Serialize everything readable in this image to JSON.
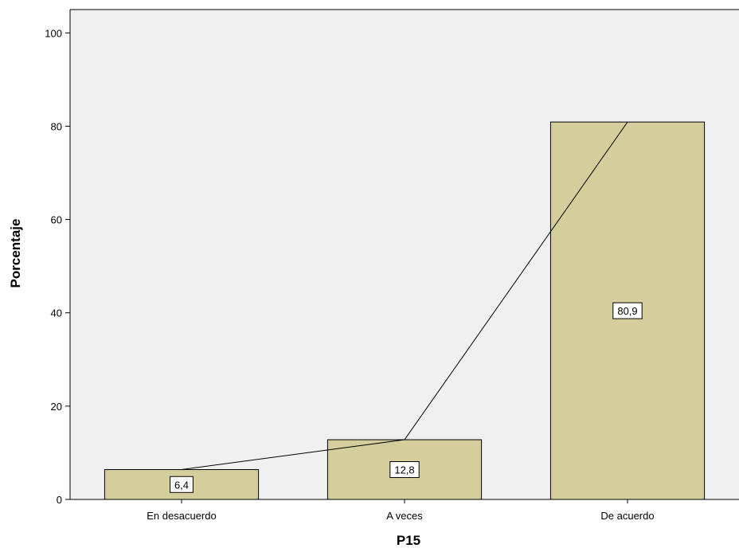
{
  "chart_data": {
    "type": "bar",
    "categories": [
      "En desacuerdo",
      "A veces",
      "De acuerdo"
    ],
    "values": [
      6.4,
      12.8,
      80.9
    ],
    "data_labels": [
      "6,4",
      "12,8",
      "80,9"
    ],
    "xlabel": "P15",
    "ylabel": "Porcentaje",
    "ylim": [
      0,
      105
    ],
    "yticks": [
      0,
      20,
      40,
      60,
      80,
      100
    ],
    "ytick_labels": [
      "0",
      "20",
      "40",
      "60",
      "80",
      "100"
    ],
    "overlay_line": true,
    "grid": false,
    "colors": {
      "plot_background": "#f0f0f0",
      "bar_fill": "#d3ce9c",
      "bar_stroke": "#000000",
      "line": "#000000"
    }
  }
}
